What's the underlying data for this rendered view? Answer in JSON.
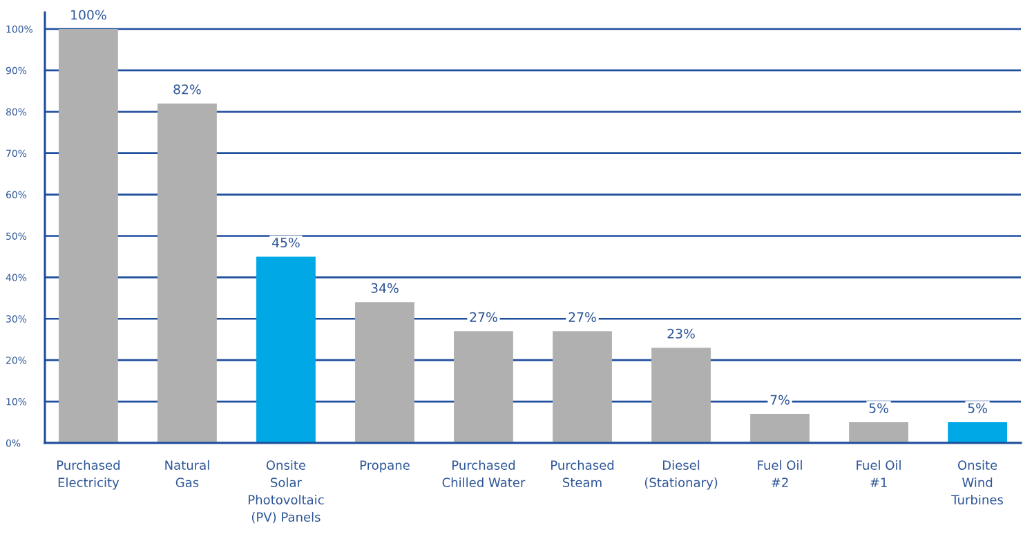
{
  "chart_data": {
    "type": "bar",
    "categories": [
      "Purchased\nElectricity",
      "Natural\nGas",
      "Onsite\nSolar\nPhotovoltaic\n(PV) Panels",
      "Propane",
      "Purchased\nChilled Water",
      "Purchased\nSteam",
      "Diesel\n(Stationary)",
      "Fuel Oil\n#2",
      "Fuel Oil\n#1",
      "Onsite\nWind\nTurbines"
    ],
    "values": [
      100,
      82,
      45,
      34,
      27,
      27,
      23,
      7,
      5,
      5
    ],
    "colors": [
      "#b0b0b0",
      "#b0b0b0",
      "#00a9e6",
      "#b0b0b0",
      "#b0b0b0",
      "#b0b0b0",
      "#b0b0b0",
      "#b0b0b0",
      "#b0b0b0",
      "#00a9e6"
    ],
    "value_labels": [
      "100%",
      "82%",
      "45%",
      "34%",
      "27%",
      "27%",
      "23%",
      "7%",
      "5%",
      "5%"
    ],
    "ylim": [
      0,
      104
    ],
    "yticks": [
      {
        "value": 0,
        "label": "0%"
      },
      {
        "value": 10,
        "label": "10%"
      },
      {
        "value": 20,
        "label": "20%"
      },
      {
        "value": 30,
        "label": "30%"
      },
      {
        "value": 40,
        "label": "40%"
      },
      {
        "value": 50,
        "label": "50%"
      },
      {
        "value": 60,
        "label": "60%"
      },
      {
        "value": 70,
        "label": "70%"
      },
      {
        "value": 80,
        "label": "80%"
      },
      {
        "value": 90,
        "label": "90%"
      },
      {
        "value": 100,
        "label": "100%"
      }
    ],
    "grid": "y"
  }
}
